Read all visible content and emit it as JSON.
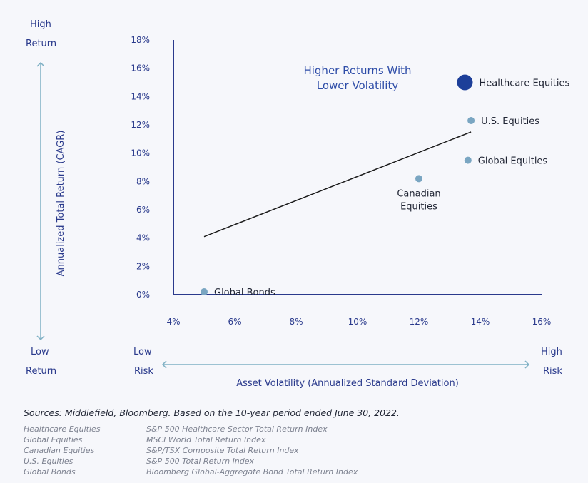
{
  "chart_data": {
    "type": "scatter",
    "xlabel": "Asset Volatility (Annualized Standard Deviation)",
    "ylabel": "Annualized Total Return (CAGR)",
    "xlim": [
      4,
      16
    ],
    "ylim": [
      0,
      18
    ],
    "x_ticks": [
      "4%",
      "6%",
      "8%",
      "10%",
      "12%",
      "14%",
      "16%"
    ],
    "x_tick_values": [
      4,
      6,
      8,
      10,
      12,
      14,
      16
    ],
    "y_ticks": [
      "0%",
      "2%",
      "4%",
      "6%",
      "8%",
      "10%",
      "12%",
      "14%",
      "16%",
      "18%"
    ],
    "y_tick_values": [
      0,
      2,
      4,
      6,
      8,
      10,
      12,
      14,
      16,
      18
    ],
    "annotation": [
      "Higher Returns With",
      "Lower Volatility"
    ],
    "trend_line": [
      {
        "x": 5.0,
        "y": 4.1
      },
      {
        "x": 13.7,
        "y": 11.5
      }
    ],
    "points": [
      {
        "name": "Healthcare Equities",
        "label_lines": [
          "Healthcare Equities"
        ],
        "x": 13.5,
        "y": 15.0,
        "highlight": true,
        "label_pos": "right"
      },
      {
        "name": "U.S. Equities",
        "label_lines": [
          "U.S. Equities"
        ],
        "x": 13.7,
        "y": 12.3,
        "highlight": false,
        "label_pos": "right"
      },
      {
        "name": "Global Equities",
        "label_lines": [
          "Global Equities"
        ],
        "x": 13.6,
        "y": 9.5,
        "highlight": false,
        "label_pos": "right"
      },
      {
        "name": "Canadian Equities",
        "label_lines": [
          "Canadian",
          "Equities"
        ],
        "x": 12.0,
        "y": 8.2,
        "highlight": false,
        "label_pos": "below"
      },
      {
        "name": "Global Bonds",
        "label_lines": [
          "Global Bonds"
        ],
        "x": 5.0,
        "y": 0.2,
        "highlight": false,
        "label_pos": "right"
      }
    ],
    "colors": {
      "highlight": "#1d3f99",
      "point": "#7aa6c2",
      "axis": "#2a3a8c",
      "arrow": "#7fb0c4",
      "trend": "#1a1a1a",
      "text": "#2a3a8c",
      "annotation": "#2e4da8"
    }
  },
  "axis_labels": {
    "high_return_1": "High",
    "high_return_2": "Return",
    "low_return_1": "Low",
    "low_return_2": "Return",
    "low_risk_1": "Low",
    "low_risk_2": "Risk",
    "high_risk_1": "High",
    "high_risk_2": "Risk"
  },
  "sources": "Sources: Middlefield, Bloomberg. Based on the 10-year period ended June 30, 2022.",
  "legend": [
    {
      "name": "Healthcare Equities",
      "index": "S&P 500 Healthcare Sector Total Return Index"
    },
    {
      "name": "Global Equities",
      "index": "MSCI World Total Return Index"
    },
    {
      "name": "Canadian Equities",
      "index": "S&P/TSX Composite Total Return Index"
    },
    {
      "name": "U.S. Equities",
      "index": "S&P 500 Total Return Index"
    },
    {
      "name": "Global Bonds",
      "index": "Bloomberg Global-Aggregate Bond Total Return Index"
    }
  ]
}
